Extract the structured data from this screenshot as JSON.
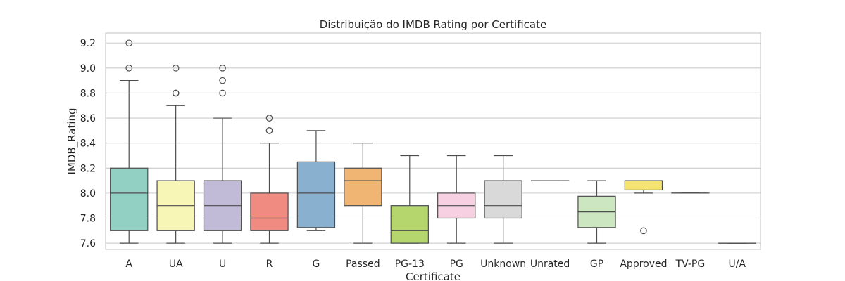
{
  "chart_data": {
    "type": "box",
    "title": "Distribuição do IMDB Rating por Certificate",
    "xlabel": "Certificate",
    "ylabel": "IMDB_Rating",
    "ylim": [
      7.55,
      9.28
    ],
    "yticks": [
      7.6,
      7.8,
      8.0,
      8.2,
      8.4,
      8.6,
      8.8,
      9.0,
      9.2
    ],
    "grid": "horizontal",
    "categories": [
      "A",
      "UA",
      "U",
      "R",
      "G",
      "Passed",
      "PG-13",
      "PG",
      "Unknown",
      "Unrated",
      "GP",
      "Approved",
      "TV-PG",
      "U/A"
    ],
    "colors": [
      "#93d0c4",
      "#f8f6b6",
      "#c1bbd8",
      "#ef8b80",
      "#8ab0cf",
      "#f0b473",
      "#b5d56d",
      "#f7d0e2",
      "#d9d9d9",
      "#c8a8d3",
      "#cbe6c1",
      "#f6e471",
      "#93d0c4",
      "#f8f6b6"
    ],
    "boxes": [
      {
        "whisker_low": 7.6,
        "q1": 7.7,
        "median": 8.0,
        "q3": 8.2,
        "whisker_high": 8.9,
        "outliers": [
          9.0,
          9.2
        ]
      },
      {
        "whisker_low": 7.6,
        "q1": 7.7,
        "median": 7.9,
        "q3": 8.1,
        "whisker_high": 8.7,
        "outliers": [
          8.8,
          8.8,
          9.0
        ]
      },
      {
        "whisker_low": 7.6,
        "q1": 7.7,
        "median": 7.9,
        "q3": 8.1,
        "whisker_high": 8.6,
        "outliers": [
          8.8,
          8.9,
          9.0
        ]
      },
      {
        "whisker_low": 7.6,
        "q1": 7.7,
        "median": 7.8,
        "q3": 8.0,
        "whisker_high": 8.4,
        "outliers": [
          8.5,
          8.5,
          8.6
        ]
      },
      {
        "whisker_low": 7.7,
        "q1": 7.725,
        "median": 8.0,
        "q3": 8.25,
        "whisker_high": 8.5,
        "outliers": []
      },
      {
        "whisker_low": 7.6,
        "q1": 7.9,
        "median": 8.1,
        "q3": 8.2,
        "whisker_high": 8.4,
        "outliers": []
      },
      {
        "whisker_low": 7.6,
        "q1": 7.6,
        "median": 7.7,
        "q3": 7.9,
        "whisker_high": 8.3,
        "outliers": []
      },
      {
        "whisker_low": 7.6,
        "q1": 7.8,
        "median": 7.9,
        "q3": 8.0,
        "whisker_high": 8.3,
        "outliers": []
      },
      {
        "whisker_low": 7.6,
        "q1": 7.8,
        "median": 7.9,
        "q3": 8.1,
        "whisker_high": 8.3,
        "outliers": []
      },
      {
        "whisker_low": 8.1,
        "q1": 8.1,
        "median": 8.1,
        "q3": 8.1,
        "whisker_high": 8.1,
        "outliers": []
      },
      {
        "whisker_low": 7.6,
        "q1": 7.725,
        "median": 7.85,
        "q3": 7.975,
        "whisker_high": 8.1,
        "outliers": []
      },
      {
        "whisker_low": 8.0,
        "q1": 8.025,
        "median": 8.1,
        "q3": 8.1,
        "whisker_high": 8.1,
        "outliers": [
          7.7
        ]
      },
      {
        "whisker_low": 8.0,
        "q1": 8.0,
        "median": 8.0,
        "q3": 8.0,
        "whisker_high": 8.0,
        "outliers": []
      },
      {
        "whisker_low": 7.6,
        "q1": 7.6,
        "median": 7.6,
        "q3": 7.6,
        "whisker_high": 7.6,
        "outliers": []
      }
    ]
  }
}
